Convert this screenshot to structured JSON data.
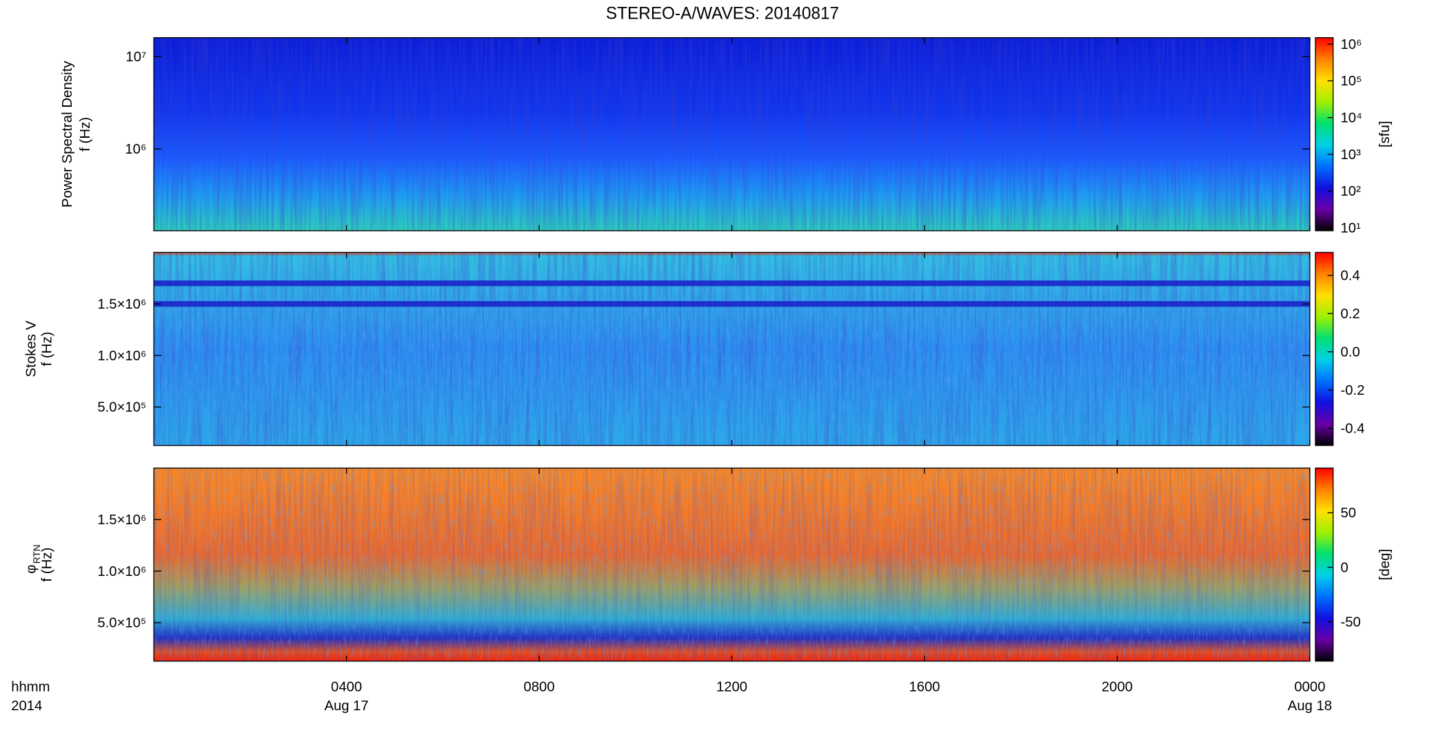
{
  "title": "STEREO-A/WAVES: 20140817",
  "x_axis": {
    "xlim": [
      0,
      24
    ],
    "xticks": [
      {
        "value": 4,
        "label": "0400"
      },
      {
        "value": 8,
        "label": "0800"
      },
      {
        "value": 12,
        "label": "1200"
      },
      {
        "value": 16,
        "label": "1600"
      },
      {
        "value": 20,
        "label": "2000"
      },
      {
        "value": 24,
        "label": "0000"
      }
    ],
    "dates": [
      {
        "value": 4,
        "label": "Aug 17"
      },
      {
        "value": 24,
        "label": "Aug 18"
      }
    ],
    "label": [
      "hhmm",
      "2014"
    ]
  },
  "colormap": [
    "#000000",
    "#6a00a8",
    "#1010e0",
    "#0070ff",
    "#00d0e8",
    "#00e070",
    "#a0f000",
    "#ffe000",
    "#ff8000",
    "#ff0000"
  ],
  "chart_data": [
    {
      "type": "heatmap",
      "ylabel": [
        "Power Spectral Density",
        "f (Hz)"
      ],
      "ylog": true,
      "ylim": [
        130000,
        16000000
      ],
      "yticks": [
        {
          "value": 1000000,
          "label": "10⁶"
        },
        {
          "value": 10000000,
          "label": "10⁷"
        }
      ],
      "colorbar": {
        "log": true,
        "lim": [
          8.3,
          1500000
        ],
        "label": "[sfu]",
        "ticks": [
          {
            "value": 10,
            "label": "10¹"
          },
          {
            "value": 100,
            "label": "10²"
          },
          {
            "value": 1000,
            "label": "10³"
          },
          {
            "value": 10000,
            "label": "10⁴"
          },
          {
            "value": 100000,
            "label": "10⁵"
          },
          {
            "value": 1000000,
            "label": "10⁶"
          }
        ]
      }
    },
    {
      "type": "heatmap",
      "ylabel": [
        "Stokes V",
        "f (Hz)"
      ],
      "ylog": false,
      "ylim": [
        127000,
        2000000
      ],
      "yticks": [
        {
          "value": 500000,
          "label": "5.0×10⁵"
        },
        {
          "value": 1000000,
          "label": "1.0×10⁶"
        },
        {
          "value": 1500000,
          "label": "1.5×10⁶"
        }
      ],
      "colorbar": {
        "log": false,
        "lim": [
          -0.49,
          0.52
        ],
        "ticks": [
          -0.4,
          -0.2,
          {
            "value": 0,
            "label": "0.0"
          },
          0.2,
          0.4
        ]
      }
    },
    {
      "type": "heatmap",
      "ylabel": [
        "φ",
        "f (Hz)"
      ],
      "ylabel_subscript": "RTN",
      "ylog": false,
      "ylim": [
        127000,
        2000000
      ],
      "yticks": [
        {
          "value": 500000,
          "label": "5.0×10⁵"
        },
        {
          "value": 1000000,
          "label": "1.0×10⁶"
        },
        {
          "value": 1500000,
          "label": "1.5×10⁶"
        }
      ],
      "colorbar": {
        "log": false,
        "lim": [
          -86,
          91
        ],
        "label": "[deg]",
        "ticks": [
          -50,
          0,
          50
        ]
      }
    }
  ]
}
